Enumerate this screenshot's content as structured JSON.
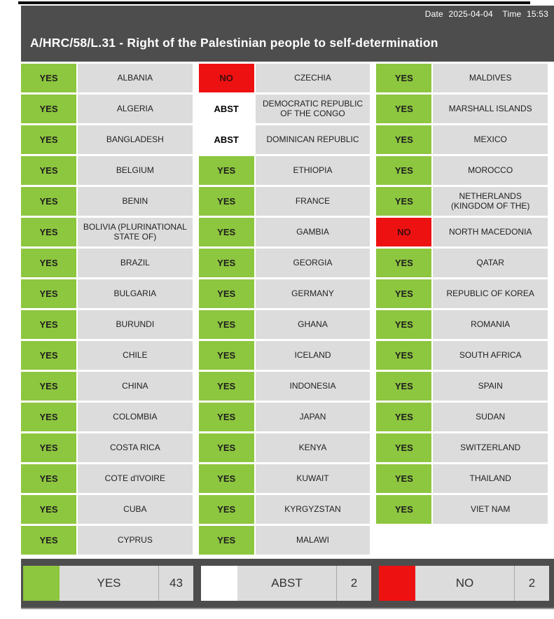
{
  "header": {
    "date_label": "Date",
    "date": "2025-04-04",
    "time_label": "Time",
    "time": "15:53",
    "title": "A/HRC/58/L.31 - Right of the Palestinian people to self-determination"
  },
  "colors": {
    "yes": "#8DC63F",
    "no": "#EE1111",
    "abst": "#FFFFFF",
    "dark_bar": "#4D4D4D",
    "cell_gray": "#DCDCDC"
  },
  "votes": {
    "columns": [
      [
        {
          "country": "ALBANIA",
          "vote": "YES"
        },
        {
          "country": "ALGERIA",
          "vote": "YES"
        },
        {
          "country": "BANGLADESH",
          "vote": "YES"
        },
        {
          "country": "BELGIUM",
          "vote": "YES"
        },
        {
          "country": "BENIN",
          "vote": "YES"
        },
        {
          "country": "BOLIVIA (PLURINATIONAL STATE OF)",
          "vote": "YES"
        },
        {
          "country": "BRAZIL",
          "vote": "YES"
        },
        {
          "country": "BULGARIA",
          "vote": "YES"
        },
        {
          "country": "BURUNDI",
          "vote": "YES"
        },
        {
          "country": "CHILE",
          "vote": "YES"
        },
        {
          "country": "CHINA",
          "vote": "YES"
        },
        {
          "country": "COLOMBIA",
          "vote": "YES"
        },
        {
          "country": "COSTA RICA",
          "vote": "YES"
        },
        {
          "country": "COTE d'IVOIRE",
          "vote": "YES"
        },
        {
          "country": "CUBA",
          "vote": "YES"
        },
        {
          "country": "CYPRUS",
          "vote": "YES"
        }
      ],
      [
        {
          "country": "CZECHIA",
          "vote": "NO"
        },
        {
          "country": "DEMOCRATIC REPUBLIC OF THE CONGO",
          "vote": "ABST"
        },
        {
          "country": "DOMINICAN REPUBLIC",
          "vote": "ABST"
        },
        {
          "country": "ETHIOPIA",
          "vote": "YES"
        },
        {
          "country": "FRANCE",
          "vote": "YES"
        },
        {
          "country": "GAMBIA",
          "vote": "YES"
        },
        {
          "country": "GEORGIA",
          "vote": "YES"
        },
        {
          "country": "GERMANY",
          "vote": "YES"
        },
        {
          "country": "GHANA",
          "vote": "YES"
        },
        {
          "country": "ICELAND",
          "vote": "YES"
        },
        {
          "country": "INDONESIA",
          "vote": "YES"
        },
        {
          "country": "JAPAN",
          "vote": "YES"
        },
        {
          "country": "KENYA",
          "vote": "YES"
        },
        {
          "country": "KUWAIT",
          "vote": "YES"
        },
        {
          "country": "KYRGYZSTAN",
          "vote": "YES"
        },
        {
          "country": "MALAWI",
          "vote": "YES"
        }
      ],
      [
        {
          "country": "MALDIVES",
          "vote": "YES"
        },
        {
          "country": "MARSHALL ISLANDS",
          "vote": "YES"
        },
        {
          "country": "MEXICO",
          "vote": "YES"
        },
        {
          "country": "MOROCCO",
          "vote": "YES"
        },
        {
          "country": "NETHERLANDS (KINGDOM OF THE)",
          "vote": "YES"
        },
        {
          "country": "NORTH MACEDONIA",
          "vote": "NO"
        },
        {
          "country": "QATAR",
          "vote": "YES"
        },
        {
          "country": "REPUBLIC OF KOREA",
          "vote": "YES"
        },
        {
          "country": "ROMANIA",
          "vote": "YES"
        },
        {
          "country": "SOUTH AFRICA",
          "vote": "YES"
        },
        {
          "country": "SPAIN",
          "vote": "YES"
        },
        {
          "country": "SUDAN",
          "vote": "YES"
        },
        {
          "country": "SWITZERLAND",
          "vote": "YES"
        },
        {
          "country": "THAILAND",
          "vote": "YES"
        },
        {
          "country": "VIET NAM",
          "vote": "YES"
        }
      ]
    ]
  },
  "summary": [
    {
      "label": "YES",
      "count": "43",
      "vote": "YES"
    },
    {
      "label": "ABST",
      "count": "2",
      "vote": "ABST"
    },
    {
      "label": "NO",
      "count": "2",
      "vote": "NO"
    }
  ]
}
